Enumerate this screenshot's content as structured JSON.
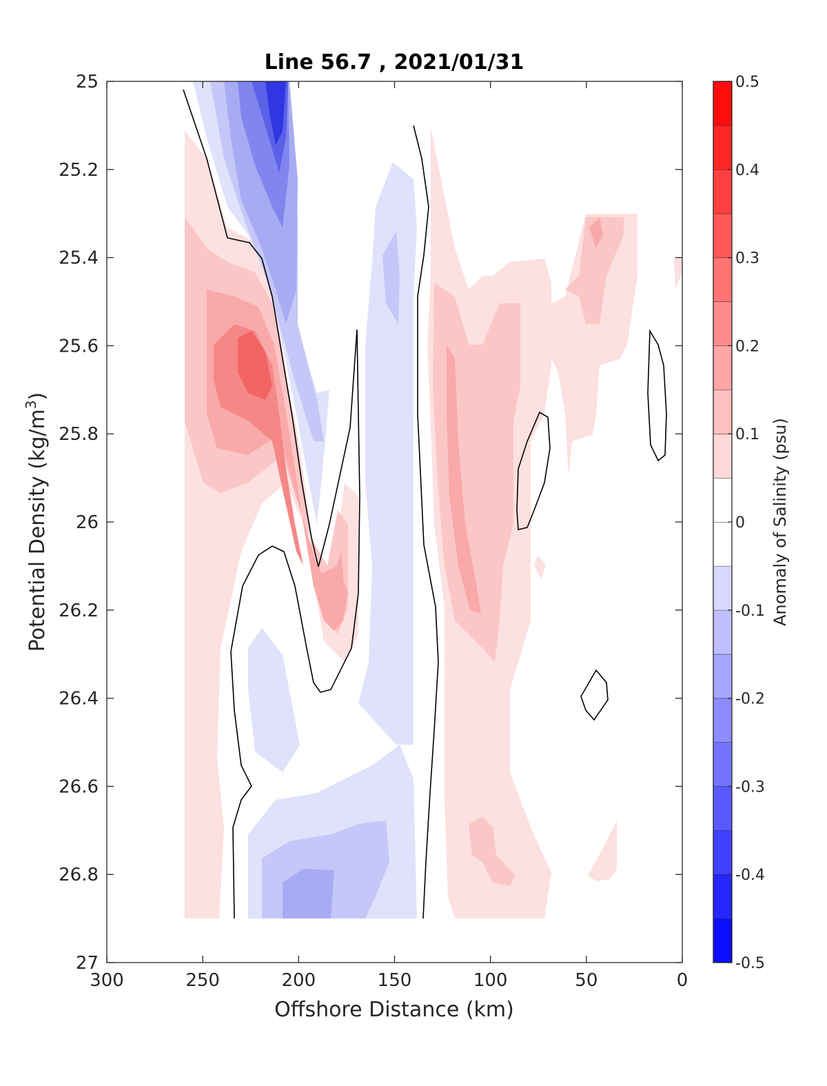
{
  "chart_data": {
    "type": "contour",
    "title": "Line 56.7 , 2021/01/31",
    "xlabel": "Offshore Distance (km)",
    "ylabel": "Potential Density (kg/m³)",
    "ylabel_main": "Potential Density (kg/m",
    "ylabel_sup": "3",
    "ylabel_tail": ")",
    "colorbar_label": "Anomaly of Salinity (psu)",
    "xlim": [
      300,
      0
    ],
    "ylim": [
      25,
      27
    ],
    "x_reversed": true,
    "y_reversed": true,
    "xticks": [
      300,
      250,
      200,
      150,
      100,
      50,
      0
    ],
    "xtick_labels": [
      "300",
      "250",
      "200",
      "150",
      "100",
      "50",
      "0"
    ],
    "yticks": [
      25,
      25.2,
      25.4,
      25.6,
      25.8,
      26,
      26.2,
      26.4,
      26.6,
      26.8,
      27
    ],
    "ytick_labels": [
      "25",
      "25.2",
      "25.4",
      "25.6",
      "25.8",
      "26",
      "26.2",
      "26.4",
      "26.6",
      "26.8",
      "27"
    ],
    "colorbar_range": [
      -0.5,
      0.5
    ],
    "colorbar_ticks": [
      -0.5,
      -0.4,
      -0.3,
      -0.2,
      -0.1,
      0,
      0.1,
      0.2,
      0.3,
      0.4,
      0.5
    ],
    "colorbar_tick_labels": [
      "-0.5",
      "-0.4",
      "-0.3",
      "-0.2",
      "-0.1",
      "0",
      "0.1",
      "0.2",
      "0.3",
      "0.4",
      "0.5"
    ],
    "colormap": "blue-white-red, 20 levels",
    "grid": false,
    "features": [
      {
        "sign": "negative",
        "peak": -0.39,
        "x": 210,
        "y": 25.05
      },
      {
        "sign": "negative",
        "peak": -0.12,
        "x": 145,
        "y": 25.45
      },
      {
        "sign": "negative",
        "peak": -0.18,
        "x": 190,
        "y": 26.82
      },
      {
        "sign": "negative",
        "peak": -0.08,
        "x": 215,
        "y": 26.4
      },
      {
        "sign": "positive",
        "peak": 0.24,
        "x": 220,
        "y": 25.6
      },
      {
        "sign": "positive",
        "peak": 0.18,
        "x": 180,
        "y": 26.2
      },
      {
        "sign": "positive",
        "peak": 0.17,
        "x": 110,
        "y": 25.85
      },
      {
        "sign": "positive",
        "peak": 0.13,
        "x": 45,
        "y": 25.35
      },
      {
        "sign": "positive",
        "peak": 0.12,
        "x": 105,
        "y": 26.75
      }
    ]
  }
}
